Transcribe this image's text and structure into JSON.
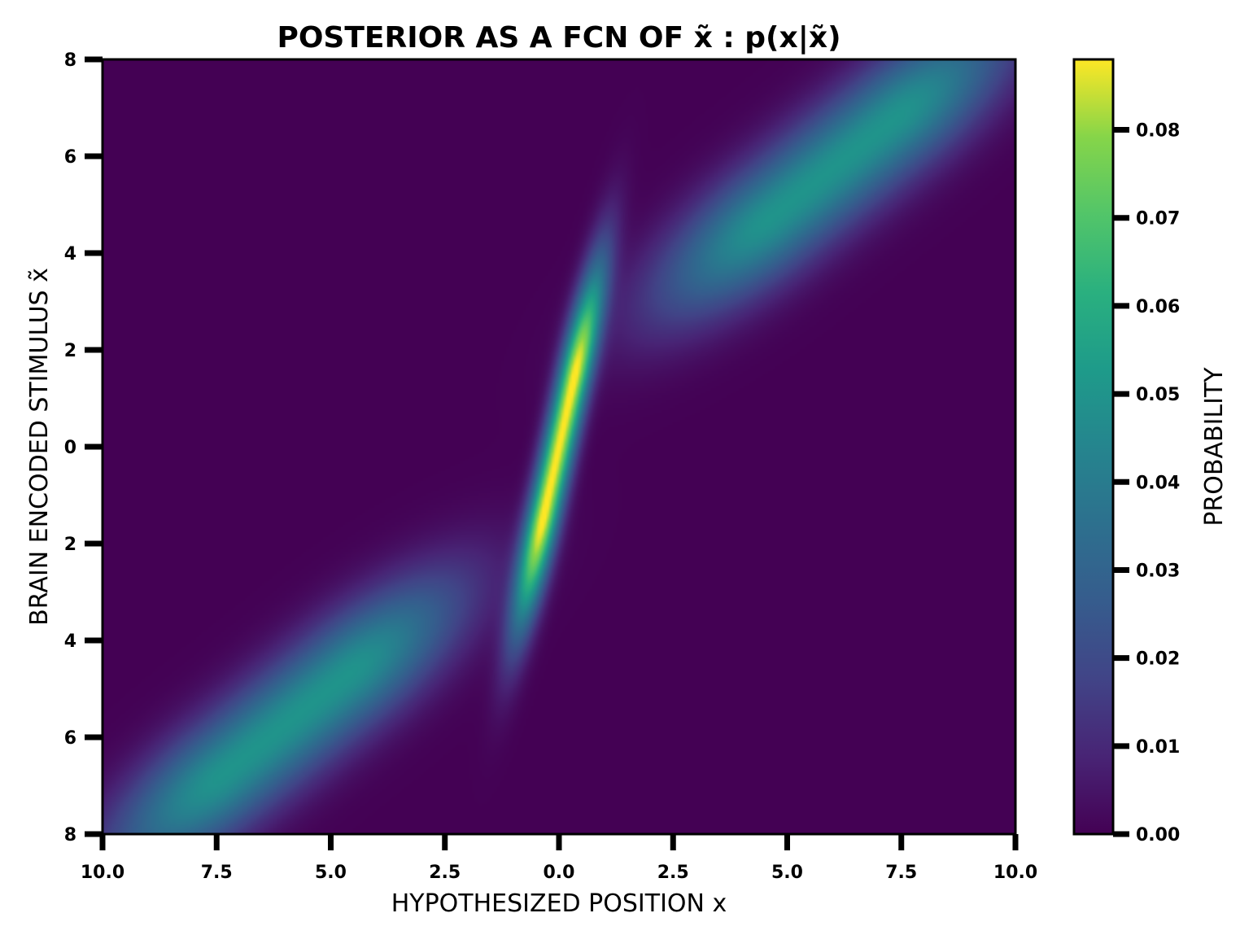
{
  "chart_data": {
    "type": "heatmap",
    "title": "POSTERIOR AS A FCN OF x̃ : p(x|x̃)",
    "xlabel": "HYPOTHESIZED POSITION x",
    "ylabel": "BRAIN ENCODED STIMULUS x̃",
    "xlim": [
      -10,
      10
    ],
    "ylim": [
      -8,
      8
    ],
    "x_tick_values": [
      -10,
      -7.5,
      -5,
      -2.5,
      0,
      2.5,
      5,
      7.5,
      10
    ],
    "x_tick_labels": [
      "10.0",
      "7.5",
      "5.0",
      "2.5",
      "0.0",
      "2.5",
      "5.0",
      "7.5",
      "10.0"
    ],
    "y_tick_values": [
      8,
      6,
      4,
      2,
      0,
      -2,
      -4,
      -6,
      -8
    ],
    "y_tick_labels": [
      "8",
      "6",
      "4",
      "2",
      "0",
      "2",
      "4",
      "6",
      "8"
    ],
    "colormap": "viridis",
    "colorbar": {
      "label": "PROBABILITY",
      "min": 0.0,
      "max": 0.088,
      "tick_values": [
        0.08,
        0.07,
        0.06,
        0.05,
        0.04,
        0.03,
        0.02,
        0.01,
        0.0
      ],
      "tick_labels": [
        "0.08",
        "0.07",
        "0.06",
        "0.05",
        "0.04",
        "0.03",
        "0.02",
        "0.01",
        "0.00"
      ]
    },
    "features": [
      {
        "region": "central streak",
        "x_range": [
          -0.7,
          0.7
        ],
        "x_tilde_range": [
          -3,
          3
        ],
        "peak_probability": 0.088
      },
      {
        "region": "upper-right band",
        "x_range": [
          3,
          9
        ],
        "x_tilde_range": [
          3.5,
          8
        ],
        "peak_probability": 0.05
      },
      {
        "region": "lower-left band",
        "x_range": [
          -9,
          -3
        ],
        "x_tilde_range": [
          -8,
          -3.5
        ],
        "peak_probability": 0.05
      }
    ]
  },
  "colors": {
    "viridis_dark": "#440154",
    "viridis_mid": "#21918c",
    "viridis_bright": "#fde725",
    "frame": "#000000"
  }
}
